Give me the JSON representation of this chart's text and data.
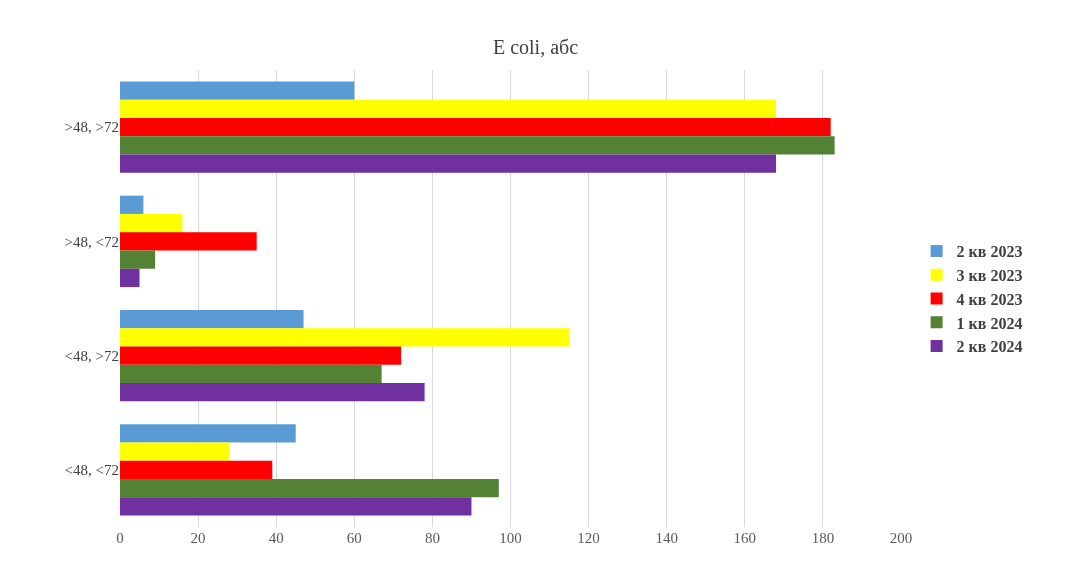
{
  "chart_data": {
    "type": "bar",
    "orientation": "horizontal",
    "title": "E coli, абс",
    "categories": [
      ">48, >72",
      ">48, <72",
      "<48, >72",
      "<48, <72"
    ],
    "series": [
      {
        "name": "2 кв 2023",
        "color": "#5b9bd5",
        "values": [
          60,
          6,
          47,
          45
        ]
      },
      {
        "name": "3 кв 2023",
        "color": "#ffff00",
        "values": [
          168,
          16,
          115,
          28
        ]
      },
      {
        "name": "4 кв 2023",
        "color": "#ff0000",
        "values": [
          182,
          35,
          72,
          39
        ]
      },
      {
        "name": "1 кв 2024",
        "color": "#548235",
        "values": [
          183,
          9,
          67,
          97
        ]
      },
      {
        "name": "2 кв 2024",
        "color": "#7030a0",
        "values": [
          168,
          5,
          78,
          90
        ]
      }
    ],
    "xlim": [
      0,
      200
    ],
    "xticks": [
      0,
      20,
      40,
      60,
      80,
      100,
      120,
      140,
      160,
      180,
      200
    ],
    "grid": "x",
    "legend": "right"
  }
}
